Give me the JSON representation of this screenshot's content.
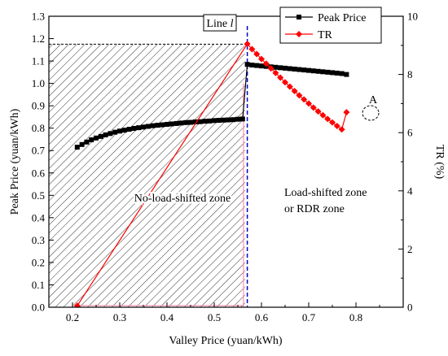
{
  "chart_data": {
    "type": "line",
    "xlabel": "Valley Price (yuan/kWh)",
    "ylabel": "Peak Price (yuan/kWh)",
    "y2label": "TR (%)",
    "xlim": [
      0.15,
      0.9
    ],
    "ylim": [
      0,
      1.3
    ],
    "y2lim": [
      0,
      10
    ],
    "xticks": [
      "0.2",
      "0.3",
      "0.4",
      "0.5",
      "0.6",
      "0.7",
      "0.8"
    ],
    "yticks": [
      "0.0",
      "0.1",
      "0.2",
      "0.3",
      "0.4",
      "0.5",
      "0.6",
      "0.7",
      "0.8",
      "0.9",
      "1.0",
      "1.1",
      "1.2",
      "1.3"
    ],
    "y2ticks": [
      "0",
      "2",
      "4",
      "6",
      "8",
      "10"
    ],
    "grid": false,
    "legend_position": "top-right",
    "colors": {
      "peak": "#000000",
      "tr": "#ff0000",
      "line_l": "#0000cc"
    },
    "series": [
      {
        "name": "Peak Price",
        "axis": "left",
        "marker": "square",
        "x": [
          0.21,
          0.22,
          0.23,
          0.24,
          0.25,
          0.26,
          0.27,
          0.28,
          0.29,
          0.3,
          0.31,
          0.32,
          0.33,
          0.34,
          0.35,
          0.36,
          0.37,
          0.38,
          0.39,
          0.4,
          0.41,
          0.42,
          0.43,
          0.44,
          0.45,
          0.46,
          0.47,
          0.48,
          0.49,
          0.5,
          0.51,
          0.52,
          0.53,
          0.54,
          0.55,
          0.56,
          0.57,
          0.58,
          0.59,
          0.6,
          0.61,
          0.62,
          0.63,
          0.64,
          0.65,
          0.66,
          0.67,
          0.68,
          0.69,
          0.7,
          0.71,
          0.72,
          0.73,
          0.74,
          0.75,
          0.76,
          0.77,
          0.78
        ],
        "values": [
          0.715,
          0.727,
          0.738,
          0.748,
          0.756,
          0.763,
          0.77,
          0.776,
          0.782,
          0.787,
          0.791,
          0.795,
          0.799,
          0.802,
          0.805,
          0.808,
          0.811,
          0.813,
          0.815,
          0.817,
          0.819,
          0.821,
          0.823,
          0.825,
          0.826,
          0.828,
          0.829,
          0.831,
          0.832,
          0.834,
          0.835,
          0.836,
          0.837,
          0.838,
          0.84,
          0.841,
          1.085,
          1.082,
          1.08,
          1.078,
          1.076,
          1.074,
          1.072,
          1.07,
          1.068,
          1.066,
          1.064,
          1.062,
          1.06,
          1.058,
          1.056,
          1.054,
          1.052,
          1.05,
          1.048,
          1.046,
          1.044,
          1.04
        ]
      },
      {
        "name": "TR",
        "axis": "right",
        "marker": "diamond",
        "x": [
          0.21,
          0.57,
          0.58,
          0.59,
          0.6,
          0.61,
          0.62,
          0.63,
          0.64,
          0.65,
          0.66,
          0.67,
          0.68,
          0.69,
          0.7,
          0.71,
          0.72,
          0.73,
          0.74,
          0.75,
          0.76,
          0.77,
          0.78
        ],
        "values": [
          0.05,
          9.05,
          8.87,
          8.7,
          8.53,
          8.37,
          8.21,
          8.05,
          7.89,
          7.73,
          7.58,
          7.43,
          7.28,
          7.14,
          7.0,
          6.86,
          6.73,
          6.6,
          6.47,
          6.35,
          6.23,
          6.11,
          6.7
        ]
      }
    ],
    "annotations": {
      "line_l_prefix": "Line ",
      "line_l_var": "l",
      "line_l_x": 0.57,
      "zone_left": "No-load-shifted zone",
      "zone_right_1": "Load-shifted zone",
      "zone_right_2": "or RDR zone",
      "point_a": "A",
      "hatched_region": {
        "x": [
          0.15,
          0.565
        ],
        "y": [
          0,
          1.175
        ]
      }
    }
  }
}
